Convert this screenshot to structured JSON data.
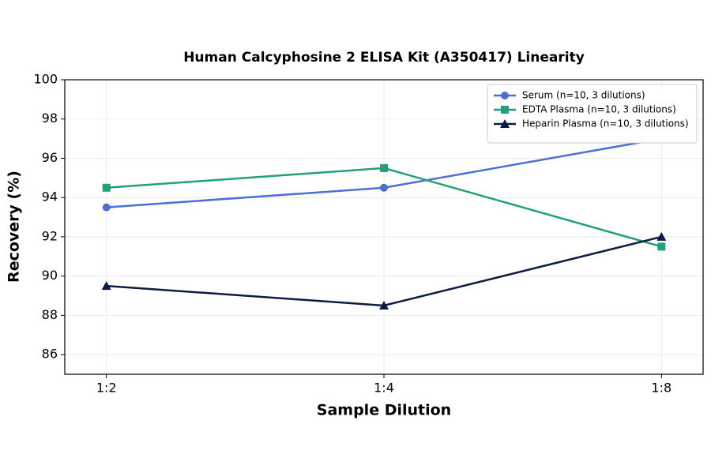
{
  "chart_data": {
    "type": "line",
    "title": "Human Calcyphosine 2 ELISA Kit (A350417) Linearity",
    "x_label": "Sample Dilution",
    "y_label": "Recovery (%)",
    "categories": [
      "1:2",
      "1:4",
      "1:8"
    ],
    "series": [
      {
        "name": "Serum (n=10, 3 dilutions)",
        "color": "#4a6fd6",
        "marker": "circle",
        "values": [
          93.5,
          94.5,
          97
        ]
      },
      {
        "name": "EDTA Plasma (n=10, 3 dilutions)",
        "color": "#21a07a",
        "marker": "square",
        "values": [
          94.5,
          95.5,
          91.5
        ]
      },
      {
        "name": "Heparin Plasma (n=10, 3 dilutions)",
        "color": "#0d1b45",
        "marker": "triangle",
        "values": [
          89.5,
          88.5,
          92
        ]
      }
    ],
    "ylim": [
      85,
      100
    ],
    "yticks": [
      86,
      88,
      90,
      92,
      94,
      96,
      98,
      100
    ],
    "grid": true,
    "legend": "upper-right"
  }
}
